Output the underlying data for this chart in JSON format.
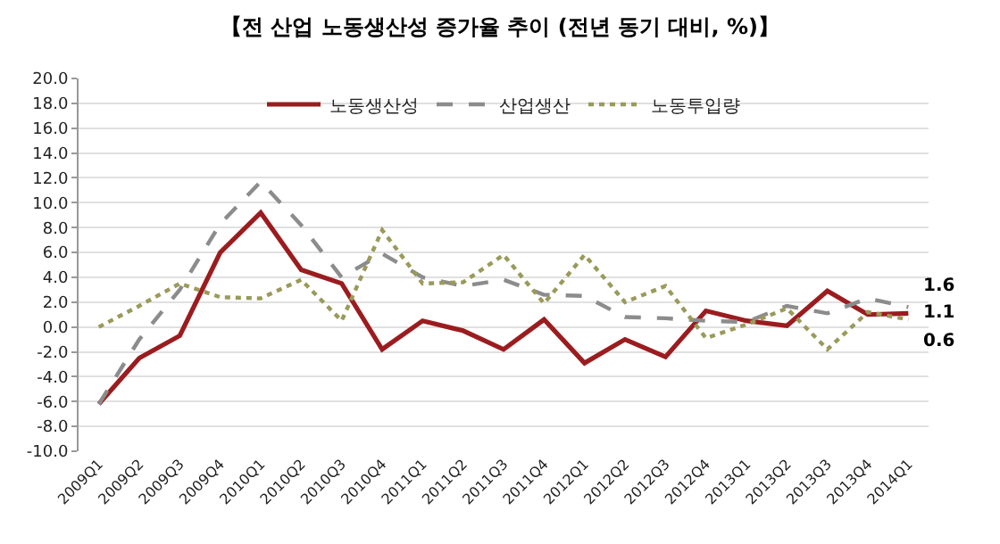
{
  "chart_data": {
    "type": "line",
    "title": "【전 산업 노동생산성 증가율 추이 (전년 동기 대비, %)】",
    "categories": [
      "2009Q1",
      "2009Q2",
      "2009Q3",
      "2009Q4",
      "2010Q1",
      "2010Q2",
      "2010Q3",
      "2010Q4",
      "2011Q1",
      "2011Q2",
      "2011Q3",
      "2011Q4",
      "2012Q1",
      "2012Q2",
      "2012Q3",
      "2012Q4",
      "2013Q1",
      "2013Q2",
      "2013Q3",
      "2013Q4",
      "2014Q1"
    ],
    "series": [
      {
        "name": "노동생산성",
        "color": "#9b1c1f",
        "line_style": "solid",
        "values": [
          -6.2,
          -2.5,
          -0.7,
          6.0,
          9.2,
          4.6,
          3.5,
          -1.8,
          0.5,
          -0.3,
          -1.8,
          0.6,
          -2.9,
          -1.0,
          -2.4,
          1.3,
          0.5,
          0.1,
          2.9,
          1.0,
          1.1
        ],
        "value_labels": [
          null,
          null,
          null,
          null,
          null,
          null,
          null,
          null,
          null,
          null,
          null,
          null,
          null,
          null,
          null,
          null,
          null,
          null,
          null,
          null,
          "1.1"
        ]
      },
      {
        "name": "산업생산",
        "color": "#8c8c8c",
        "line_style": "dashed",
        "values": [
          -6.2,
          -1.0,
          3.0,
          8.3,
          11.7,
          8.2,
          4.0,
          5.9,
          4.0,
          3.3,
          3.8,
          2.6,
          2.5,
          0.8,
          0.7,
          0.5,
          0.4,
          1.7,
          1.1,
          2.3,
          1.6
        ],
        "value_labels": [
          null,
          null,
          null,
          null,
          null,
          null,
          null,
          null,
          null,
          null,
          null,
          null,
          null,
          null,
          null,
          null,
          null,
          null,
          null,
          null,
          "1.6"
        ]
      },
      {
        "name": "노동투입량",
        "color": "#9a9a5a",
        "line_style": "dotted",
        "values": [
          0.0,
          1.7,
          3.5,
          2.4,
          2.3,
          3.8,
          0.5,
          7.8,
          3.5,
          3.6,
          5.8,
          1.9,
          5.8,
          2.0,
          3.3,
          -0.9,
          0.2,
          1.5,
          -1.8,
          1.2,
          0.6
        ],
        "value_labels": [
          null,
          null,
          null,
          null,
          null,
          null,
          null,
          null,
          null,
          null,
          null,
          null,
          null,
          null,
          null,
          null,
          null,
          null,
          null,
          null,
          "0.6"
        ]
      }
    ],
    "ylim": [
      -10,
      20
    ],
    "yticks": [
      {
        "value": -10,
        "label": "-10.0"
      },
      {
        "value": -8,
        "label": "-8.0"
      },
      {
        "value": -6,
        "label": "-6.0"
      },
      {
        "value": -4,
        "label": "-4.0"
      },
      {
        "value": -2,
        "label": "-2.0"
      },
      {
        "value": 0,
        "label": "0.0"
      },
      {
        "value": 2,
        "label": "2.0"
      },
      {
        "value": 4,
        "label": "4.0"
      },
      {
        "value": 6,
        "label": "6.0"
      },
      {
        "value": 8,
        "label": "8.0"
      },
      {
        "value": 10,
        "label": "10.0"
      },
      {
        "value": 12,
        "label": "12.0"
      },
      {
        "value": 14,
        "label": "14.0"
      },
      {
        "value": 16,
        "label": "16.0"
      },
      {
        "value": 18,
        "label": "18.0"
      },
      {
        "value": 20,
        "label": "20.0"
      }
    ],
    "grid": "y",
    "legend": "top",
    "marker": "none"
  }
}
